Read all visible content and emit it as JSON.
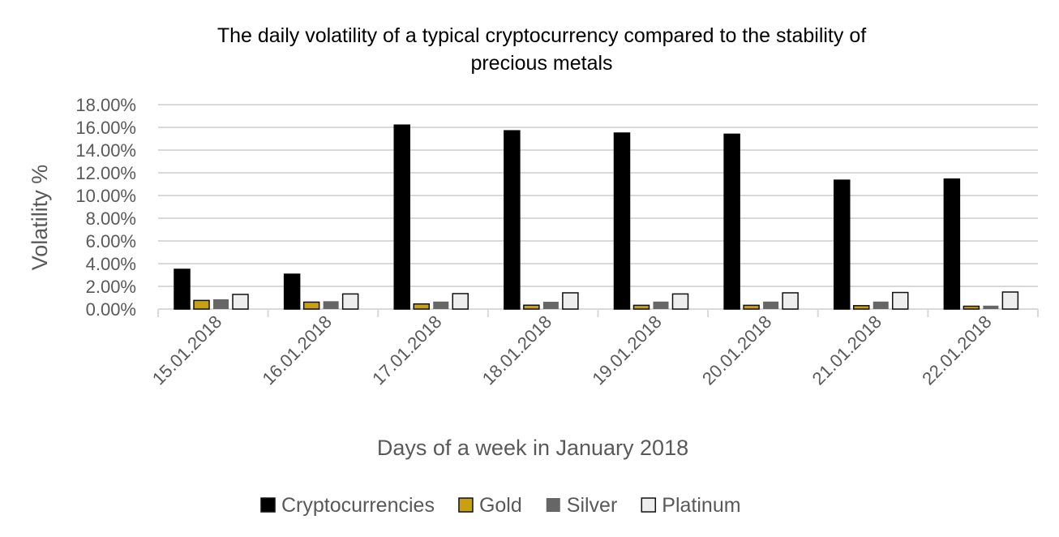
{
  "chart_data": {
    "type": "bar",
    "title_lines": [
      "The daily volatility of a typical cryptocurrency compared to the stability of",
      "precious metals"
    ],
    "xlabel": "Days of a week in January 2018",
    "ylabel": "Volatility %",
    "ylim": [
      0,
      18
    ],
    "yticks": [
      "0.00%",
      "2.00%",
      "4.00%",
      "6.00%",
      "8.00%",
      "10.00%",
      "12.00%",
      "14.00%",
      "16.00%",
      "18.00%"
    ],
    "grid": true,
    "legend_position": "bottom",
    "categories": [
      "15.01.2018",
      "16.01.2018",
      "17.01.2018",
      "18.01.2018",
      "19.01.2018",
      "20.01.2018",
      "21.01.2018",
      "22.01.2018"
    ],
    "series": [
      {
        "name": "Cryptocurrencies",
        "color": "#000000",
        "values": [
          3.5,
          3.07,
          16.2,
          15.7,
          15.5,
          15.4,
          11.35,
          11.45
        ]
      },
      {
        "name": "Gold",
        "color": "#c9a10f",
        "values": [
          0.76,
          0.61,
          0.45,
          0.34,
          0.33,
          0.33,
          0.3,
          0.25
        ]
      },
      {
        "name": "Silver",
        "color": "#666666",
        "values": [
          0.86,
          0.69,
          0.66,
          0.64,
          0.66,
          0.66,
          0.66,
          0.3
        ]
      },
      {
        "name": "Platinum",
        "color": "#eeeeee",
        "values": [
          1.29,
          1.33,
          1.36,
          1.43,
          1.33,
          1.43,
          1.46,
          1.5
        ]
      }
    ]
  }
}
